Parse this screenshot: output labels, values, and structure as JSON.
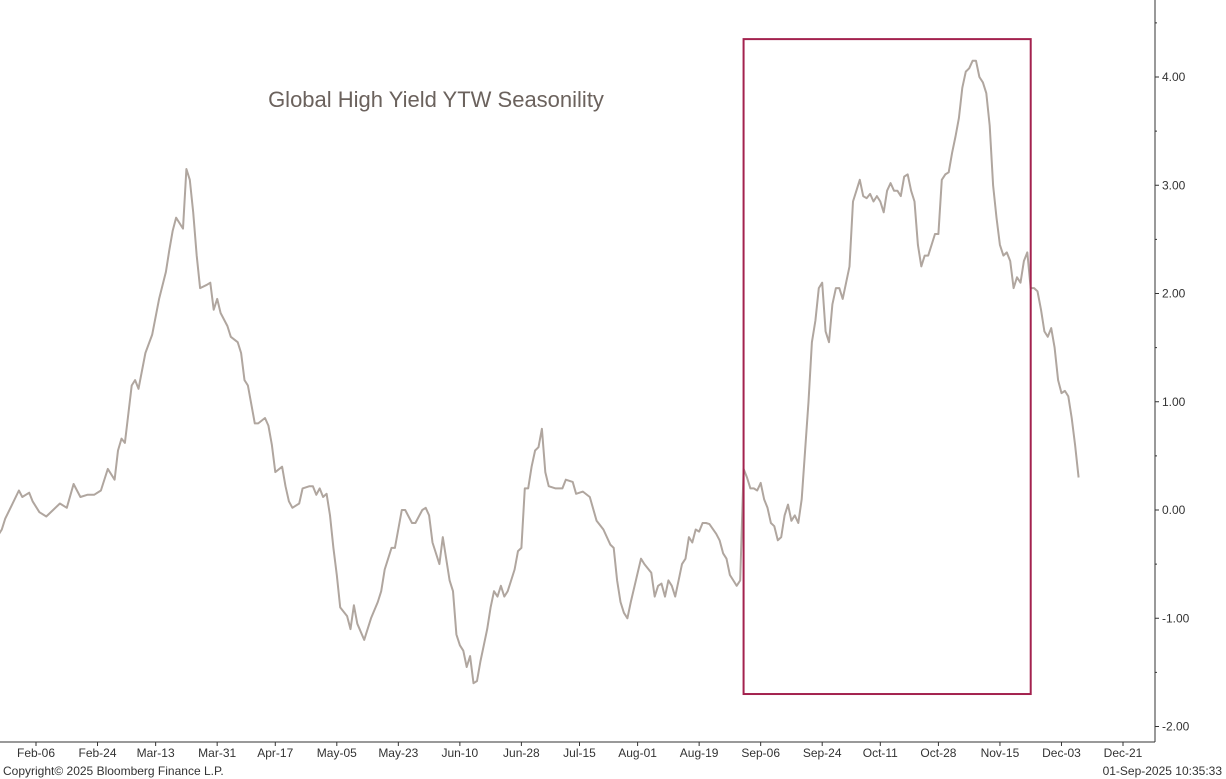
{
  "chart_data": {
    "type": "line",
    "title": "Global High Yield YTW Seasonility",
    "xlabel": "",
    "ylabel": "",
    "ylim": [
      -2.0,
      4.5
    ],
    "y_ticks": [
      -2.0,
      -1.0,
      0.0,
      1.0,
      2.0,
      3.0,
      4.0
    ],
    "y_tick_labels": [
      "-2.00",
      "-1.00",
      "0.00",
      "1.00",
      "2.00",
      "3.00",
      "4.00"
    ],
    "x_tick_labels": [
      "Feb-06",
      "Feb-24",
      "Mar-13",
      "Mar-31",
      "Apr-17",
      "May-05",
      "May-23",
      "Jun-10",
      "Jun-28",
      "Jul-15",
      "Aug-01",
      "Aug-19",
      "Sep-06",
      "Sep-24",
      "Oct-11",
      "Oct-28",
      "Nov-15",
      "Dec-03",
      "Dec-21"
    ],
    "grid": false,
    "y_axis_side": "right",
    "line_color": "#b0a69f",
    "highlight": {
      "x_from": "Sep-01",
      "x_to": "Nov-24",
      "y_from": -1.7,
      "y_to": 4.35,
      "color": "#a3224e"
    },
    "series": [
      {
        "values": [
          [
            "Jan-20",
            0.0
          ],
          [
            "Jan-21",
            -0.25
          ],
          [
            "Jan-23",
            -0.33
          ],
          [
            "Jan-25",
            -0.28
          ],
          [
            "Jan-27",
            -0.18
          ],
          [
            "Jan-28",
            -0.08
          ],
          [
            "Jan-30",
            0.05
          ],
          [
            "Feb-01",
            0.18
          ],
          [
            "Feb-02",
            0.12
          ],
          [
            "Feb-04",
            0.16
          ],
          [
            "Feb-05",
            0.08
          ],
          [
            "Feb-07",
            -0.02
          ],
          [
            "Feb-09",
            -0.06
          ],
          [
            "Feb-11",
            0.0
          ],
          [
            "Feb-13",
            0.06
          ],
          [
            "Feb-15",
            0.02
          ],
          [
            "Feb-17",
            0.24
          ],
          [
            "Feb-19",
            0.12
          ],
          [
            "Feb-21",
            0.14
          ],
          [
            "Feb-23",
            0.14
          ],
          [
            "Feb-25",
            0.18
          ],
          [
            "Feb-27",
            0.38
          ],
          [
            "Feb-29",
            0.28
          ],
          [
            "Mar-02",
            0.55
          ],
          [
            "Mar-03",
            0.66
          ],
          [
            "Mar-04",
            0.62
          ],
          [
            "Mar-06",
            1.15
          ],
          [
            "Mar-07",
            1.2
          ],
          [
            "Mar-08",
            1.12
          ],
          [
            "Mar-10",
            1.45
          ],
          [
            "Mar-12",
            1.62
          ],
          [
            "Mar-14",
            1.95
          ],
          [
            "Mar-16",
            2.2
          ],
          [
            "Mar-17",
            2.4
          ],
          [
            "Mar-18",
            2.58
          ],
          [
            "Mar-19",
            2.7
          ],
          [
            "Mar-21",
            2.6
          ],
          [
            "Mar-22",
            3.15
          ],
          [
            "Mar-23",
            3.05
          ],
          [
            "Mar-24",
            2.75
          ],
          [
            "Mar-25",
            2.35
          ],
          [
            "Mar-26",
            2.05
          ],
          [
            "Mar-28",
            2.08
          ],
          [
            "Mar-29",
            2.1
          ],
          [
            "Mar-30",
            1.85
          ],
          [
            "Mar-31",
            1.95
          ],
          [
            "Apr-01",
            1.82
          ],
          [
            "Apr-03",
            1.7
          ],
          [
            "Apr-04",
            1.6
          ],
          [
            "Apr-06",
            1.55
          ],
          [
            "Apr-07",
            1.45
          ],
          [
            "Apr-08",
            1.2
          ],
          [
            "Apr-09",
            1.15
          ],
          [
            "Apr-11",
            0.8
          ],
          [
            "Apr-12",
            0.8
          ],
          [
            "Apr-14",
            0.85
          ],
          [
            "Apr-15",
            0.78
          ],
          [
            "Apr-16",
            0.6
          ],
          [
            "Apr-17",
            0.35
          ],
          [
            "Apr-19",
            0.4
          ],
          [
            "Apr-20",
            0.22
          ],
          [
            "Apr-21",
            0.08
          ],
          [
            "Apr-22",
            0.02
          ],
          [
            "Apr-24",
            0.06
          ],
          [
            "Apr-25",
            0.2
          ],
          [
            "Apr-27",
            0.22
          ],
          [
            "Apr-28",
            0.22
          ],
          [
            "Apr-29",
            0.14
          ],
          [
            "Apr-30",
            0.2
          ],
          [
            "May-01",
            0.12
          ],
          [
            "May-02",
            0.15
          ],
          [
            "May-03",
            -0.05
          ],
          [
            "May-04",
            -0.35
          ],
          [
            "May-05",
            -0.6
          ],
          [
            "May-06",
            -0.9
          ],
          [
            "May-08",
            -0.98
          ],
          [
            "May-09",
            -1.1
          ],
          [
            "May-10",
            -0.88
          ],
          [
            "May-11",
            -1.05
          ],
          [
            "May-13",
            -1.2
          ],
          [
            "May-15",
            -1.0
          ],
          [
            "May-17",
            -0.85
          ],
          [
            "May-18",
            -0.75
          ],
          [
            "May-19",
            -0.55
          ],
          [
            "May-21",
            -0.35
          ],
          [
            "May-22",
            -0.35
          ],
          [
            "May-24",
            0.0
          ],
          [
            "May-25",
            0.0
          ],
          [
            "May-27",
            -0.12
          ],
          [
            "May-28",
            -0.12
          ],
          [
            "May-30",
            0.0
          ],
          [
            "May-31",
            0.02
          ],
          [
            "Jun-01",
            -0.05
          ],
          [
            "Jun-02",
            -0.3
          ],
          [
            "Jun-04",
            -0.5
          ],
          [
            "Jun-05",
            -0.25
          ],
          [
            "Jun-07",
            -0.65
          ],
          [
            "Jun-08",
            -0.75
          ],
          [
            "Jun-09",
            -1.15
          ],
          [
            "Jun-10",
            -1.25
          ],
          [
            "Jun-11",
            -1.3
          ],
          [
            "Jun-12",
            -1.45
          ],
          [
            "Jun-13",
            -1.35
          ],
          [
            "Jun-14",
            -1.6
          ],
          [
            "Jun-15",
            -1.58
          ],
          [
            "Jun-16",
            -1.4
          ],
          [
            "Jun-17",
            -1.25
          ],
          [
            "Jun-18",
            -1.1
          ],
          [
            "Jun-19",
            -0.9
          ],
          [
            "Jun-20",
            -0.75
          ],
          [
            "Jun-21",
            -0.8
          ],
          [
            "Jun-22",
            -0.7
          ],
          [
            "Jun-23",
            -0.8
          ],
          [
            "Jun-24",
            -0.75
          ],
          [
            "Jun-26",
            -0.55
          ],
          [
            "Jun-27",
            -0.38
          ],
          [
            "Jun-28",
            -0.35
          ],
          [
            "Jun-29",
            0.2
          ],
          [
            "Jun-30",
            0.2
          ],
          [
            "Jul-01",
            0.4
          ],
          [
            "Jul-02",
            0.55
          ],
          [
            "Jul-03",
            0.58
          ],
          [
            "Jul-04",
            0.75
          ],
          [
            "Jul-05",
            0.35
          ],
          [
            "Jul-06",
            0.22
          ],
          [
            "Jul-08",
            0.2
          ],
          [
            "Jul-09",
            0.2
          ],
          [
            "Jul-10",
            0.2
          ],
          [
            "Jul-11",
            0.28
          ],
          [
            "Jul-13",
            0.26
          ],
          [
            "Jul-14",
            0.15
          ],
          [
            "Jul-16",
            0.17
          ],
          [
            "Jul-18",
            0.12
          ],
          [
            "Jul-20",
            -0.1
          ],
          [
            "Jul-22",
            -0.18
          ],
          [
            "Jul-24",
            -0.32
          ],
          [
            "Jul-25",
            -0.35
          ],
          [
            "Jul-26",
            -0.65
          ],
          [
            "Jul-27",
            -0.85
          ],
          [
            "Jul-28",
            -0.95
          ],
          [
            "Jul-29",
            -1.0
          ],
          [
            "Jul-30",
            -0.85
          ],
          [
            "Aug-02",
            -0.45
          ],
          [
            "Aug-03",
            -0.5
          ],
          [
            "Aug-05",
            -0.58
          ],
          [
            "Aug-06",
            -0.8
          ],
          [
            "Aug-07",
            -0.7
          ],
          [
            "Aug-08",
            -0.68
          ],
          [
            "Aug-09",
            -0.8
          ],
          [
            "Aug-10",
            -0.65
          ],
          [
            "Aug-11",
            -0.7
          ],
          [
            "Aug-12",
            -0.8
          ],
          [
            "Aug-13",
            -0.65
          ],
          [
            "Aug-14",
            -0.5
          ],
          [
            "Aug-15",
            -0.45
          ],
          [
            "Aug-16",
            -0.25
          ],
          [
            "Aug-17",
            -0.3
          ],
          [
            "Aug-18",
            -0.18
          ],
          [
            "Aug-19",
            -0.2
          ],
          [
            "Aug-20",
            -0.12
          ],
          [
            "Aug-21",
            -0.12
          ],
          [
            "Aug-22",
            -0.13
          ],
          [
            "Aug-24",
            -0.22
          ],
          [
            "Aug-25",
            -0.28
          ],
          [
            "Aug-26",
            -0.4
          ],
          [
            "Aug-27",
            -0.45
          ],
          [
            "Aug-28",
            -0.6
          ],
          [
            "Aug-29",
            -0.65
          ],
          [
            "Aug-30",
            -0.7
          ],
          [
            "Aug-31",
            -0.65
          ],
          [
            "Sep-01",
            0.38
          ],
          [
            "Sep-02",
            0.3
          ],
          [
            "Sep-03",
            0.2
          ],
          [
            "Sep-04",
            0.2
          ],
          [
            "Sep-05",
            0.18
          ],
          [
            "Sep-06",
            0.25
          ],
          [
            "Sep-07",
            0.1
          ],
          [
            "Sep-08",
            0.02
          ],
          [
            "Sep-09",
            -0.12
          ],
          [
            "Sep-10",
            -0.15
          ],
          [
            "Sep-11",
            -0.28
          ],
          [
            "Sep-12",
            -0.25
          ],
          [
            "Sep-13",
            -0.05
          ],
          [
            "Sep-14",
            0.05
          ],
          [
            "Sep-15",
            -0.1
          ],
          [
            "Sep-16",
            -0.05
          ],
          [
            "Sep-17",
            -0.12
          ],
          [
            "Sep-18",
            0.1
          ],
          [
            "Sep-19",
            0.55
          ],
          [
            "Sep-20",
            1.0
          ],
          [
            "Sep-21",
            1.55
          ],
          [
            "Sep-22",
            1.75
          ],
          [
            "Sep-23",
            2.05
          ],
          [
            "Sep-24",
            2.1
          ],
          [
            "Sep-25",
            1.65
          ],
          [
            "Sep-26",
            1.55
          ],
          [
            "Sep-27",
            1.9
          ],
          [
            "Sep-28",
            2.05
          ],
          [
            "Sep-29",
            2.05
          ],
          [
            "Sep-30",
            1.95
          ],
          [
            "Oct-01",
            2.1
          ],
          [
            "Oct-02",
            2.25
          ],
          [
            "Oct-03",
            2.85
          ],
          [
            "Oct-04",
            2.95
          ],
          [
            "Oct-05",
            3.05
          ],
          [
            "Oct-06",
            2.9
          ],
          [
            "Oct-07",
            2.88
          ],
          [
            "Oct-08",
            2.92
          ],
          [
            "Oct-09",
            2.85
          ],
          [
            "Oct-10",
            2.9
          ],
          [
            "Oct-11",
            2.85
          ],
          [
            "Oct-12",
            2.75
          ],
          [
            "Oct-13",
            2.95
          ],
          [
            "Oct-14",
            3.02
          ],
          [
            "Oct-15",
            2.95
          ],
          [
            "Oct-16",
            2.95
          ],
          [
            "Oct-17",
            2.9
          ],
          [
            "Oct-18",
            3.08
          ],
          [
            "Oct-19",
            3.1
          ],
          [
            "Oct-20",
            2.95
          ],
          [
            "Oct-21",
            2.85
          ],
          [
            "Oct-22",
            2.45
          ],
          [
            "Oct-23",
            2.25
          ],
          [
            "Oct-24",
            2.35
          ],
          [
            "Oct-25",
            2.35
          ],
          [
            "Oct-26",
            2.45
          ],
          [
            "Oct-27",
            2.55
          ],
          [
            "Oct-28",
            2.55
          ],
          [
            "Oct-29",
            3.05
          ],
          [
            "Oct-30",
            3.1
          ],
          [
            "Oct-31",
            3.12
          ],
          [
            "Nov-01",
            3.3
          ],
          [
            "Nov-02",
            3.45
          ],
          [
            "Nov-03",
            3.62
          ],
          [
            "Nov-04",
            3.9
          ],
          [
            "Nov-05",
            4.05
          ],
          [
            "Nov-06",
            4.08
          ],
          [
            "Nov-07",
            4.15
          ],
          [
            "Nov-08",
            4.15
          ],
          [
            "Nov-09",
            4.0
          ],
          [
            "Nov-10",
            3.95
          ],
          [
            "Nov-11",
            3.85
          ],
          [
            "Nov-12",
            3.55
          ],
          [
            "Nov-13",
            3.0
          ],
          [
            "Nov-14",
            2.7
          ],
          [
            "Nov-15",
            2.45
          ],
          [
            "Nov-16",
            2.35
          ],
          [
            "Nov-17",
            2.38
          ],
          [
            "Nov-18",
            2.3
          ],
          [
            "Nov-19",
            2.05
          ],
          [
            "Nov-20",
            2.15
          ],
          [
            "Nov-21",
            2.1
          ],
          [
            "Nov-22",
            2.3
          ],
          [
            "Nov-23",
            2.38
          ],
          [
            "Nov-24",
            2.05
          ],
          [
            "Nov-25",
            2.05
          ],
          [
            "Nov-26",
            2.02
          ],
          [
            "Nov-27",
            1.85
          ],
          [
            "Nov-28",
            1.65
          ],
          [
            "Nov-29",
            1.6
          ],
          [
            "Nov-30",
            1.68
          ],
          [
            "Dec-01",
            1.5
          ],
          [
            "Dec-02",
            1.2
          ],
          [
            "Dec-03",
            1.08
          ],
          [
            "Dec-04",
            1.1
          ],
          [
            "Dec-05",
            1.05
          ],
          [
            "Dec-06",
            0.85
          ],
          [
            "Dec-07",
            0.6
          ],
          [
            "Dec-08",
            0.3
          ]
        ]
      }
    ]
  },
  "footer": {
    "copyright": "Copyright© 2025 Bloomberg Finance L.P.",
    "timestamp": "01-Sep-2025 10:35:33"
  }
}
